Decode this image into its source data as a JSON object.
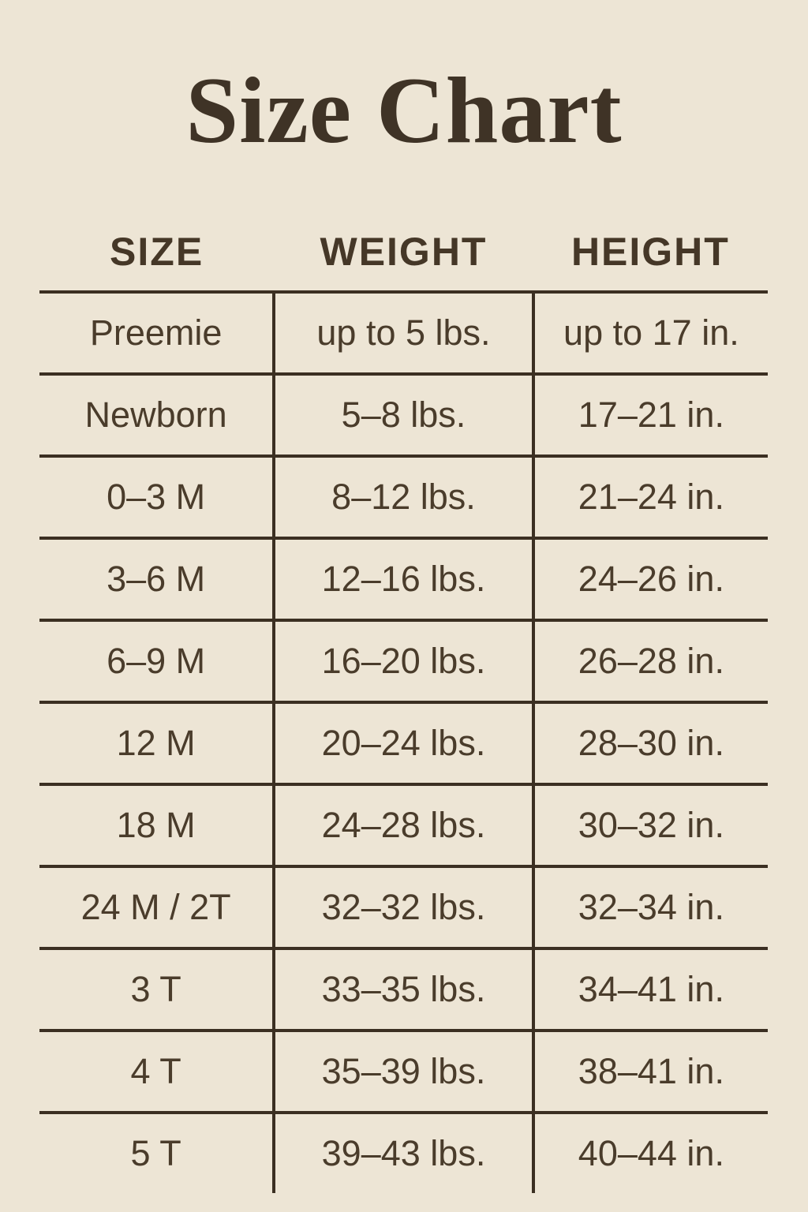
{
  "chart_data": {
    "type": "table",
    "title": "Size Chart",
    "columns": [
      "SIZE",
      "WEIGHT",
      "HEIGHT"
    ],
    "rows": [
      [
        "Preemie",
        "up to 5 lbs.",
        "up to 17 in."
      ],
      [
        "Newborn",
        "5–8 lbs.",
        "17–21 in."
      ],
      [
        "0–3 M",
        "8–12 lbs.",
        "21–24 in."
      ],
      [
        "3–6 M",
        "12–16 lbs.",
        "24–26 in."
      ],
      [
        "6–9 M",
        "16–20 lbs.",
        "26–28 in."
      ],
      [
        "12 M",
        "20–24 lbs.",
        "28–30 in."
      ],
      [
        "18 M",
        "24–28 lbs.",
        "30–32 in."
      ],
      [
        "24 M / 2T",
        "32–32 lbs.",
        "32–34 in."
      ],
      [
        "3 T",
        "33–35 lbs.",
        "34–41 in."
      ],
      [
        "4 T",
        "35–39 lbs.",
        "38–41 in."
      ],
      [
        "5 T",
        "39–43 lbs.",
        "40–44 in."
      ]
    ],
    "layout": {
      "legend": "none",
      "grid": "horizontal rules between rows, vertical rules between columns, no outer border, no bottom rule"
    },
    "colors": {
      "background": "#EDE5D5",
      "title_text": "#3F3326",
      "header_text": "#453727",
      "cell_text": "#4A3C2B",
      "rule_lines": "#3B2F22"
    }
  }
}
